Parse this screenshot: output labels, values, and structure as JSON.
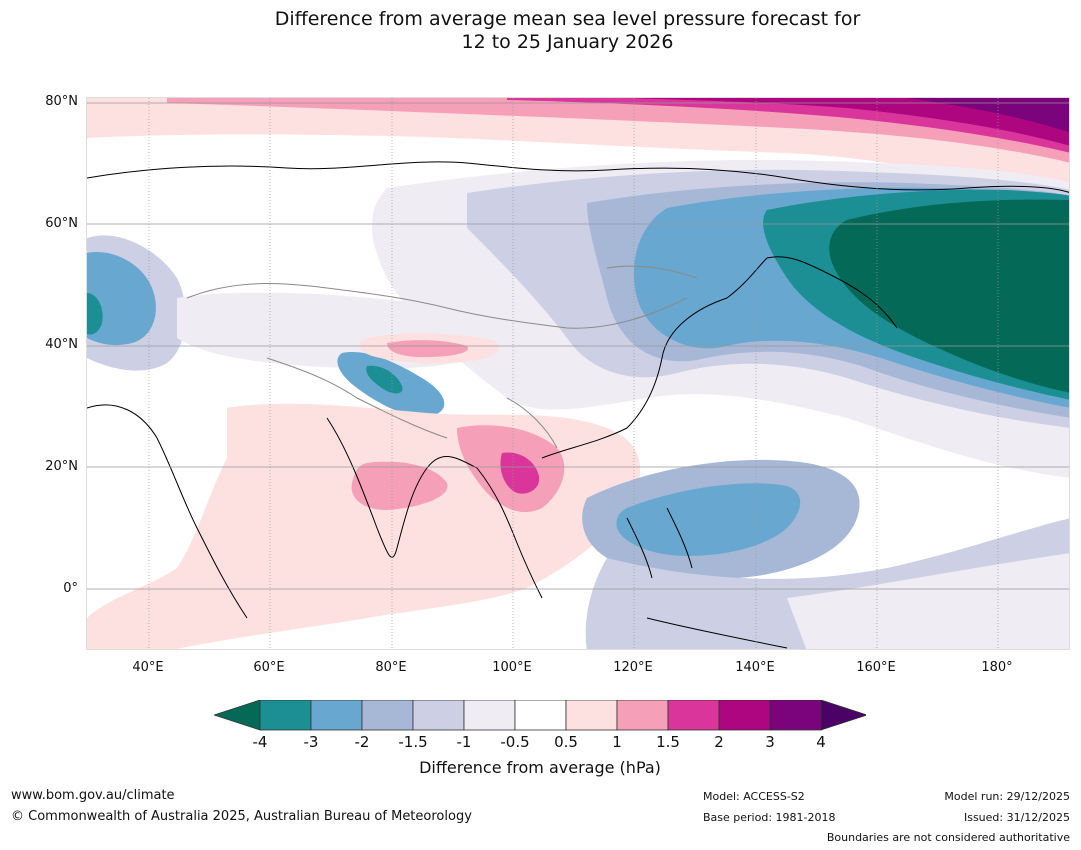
{
  "title": {
    "line1": "Difference from average mean sea level pressure forecast for",
    "line2": "12 to 25 January 2026"
  },
  "map": {
    "lat_labels": [
      "80°N",
      "60°N",
      "40°N",
      "20°N",
      "0°"
    ],
    "lon_labels": [
      "40°E",
      "60°E",
      "80°E",
      "100°E",
      "120°E",
      "140°E",
      "160°E",
      "180°"
    ]
  },
  "colorbar": {
    "tick_labels": [
      "-4",
      "-3",
      "-2",
      "-1.5",
      "-1",
      "-0.5",
      "0.5",
      "1",
      "1.5",
      "2",
      "3",
      "4"
    ],
    "colors": [
      "#046a57",
      "#1b8f94",
      "#68a8d0",
      "#a6b8d6",
      "#cdd0e4",
      "#f0ecf4",
      "#ffffff",
      "#fde0e0",
      "#f59fb9",
      "#d9359a",
      "#ae0580",
      "#7b037b",
      "#4a0266"
    ],
    "title": "Difference from average (hPa)"
  },
  "footer": {
    "url": "www.bom.gov.au/climate",
    "copyright": "© Commonwealth of Australia 2025, Australian Bureau of Meteorology",
    "model": "Model: ACCESS-S2",
    "base_period": "Base period: 1981-2018",
    "model_run": "Model run: 29/12/2025",
    "issued": "Issued: 31/12/2025",
    "disclaimer": "Boundaries are not considered authoritative"
  }
}
